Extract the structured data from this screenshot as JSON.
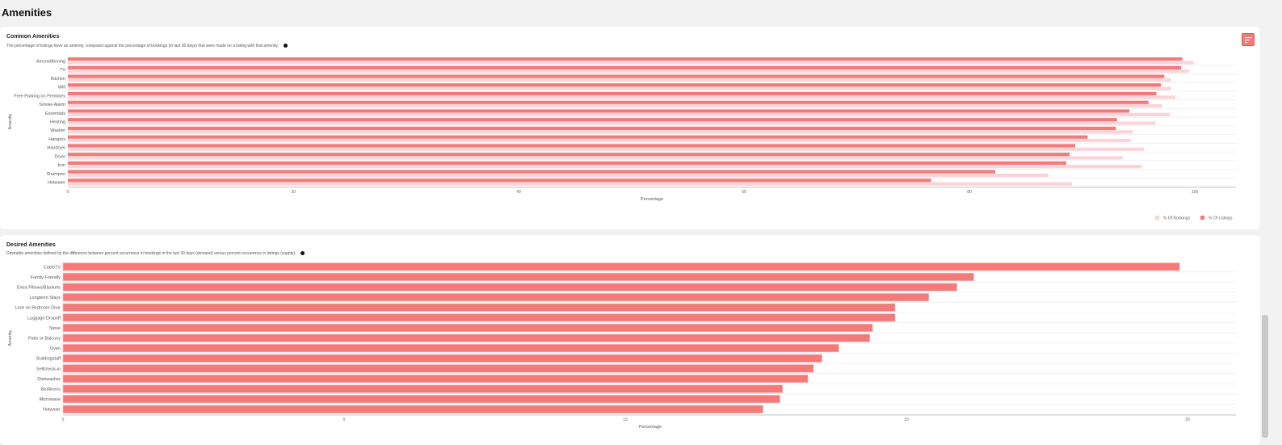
{
  "page": {
    "title": "Amenities"
  },
  "colors": {
    "listings": "#f47a7a",
    "bookings": "#fad4d8",
    "desired": "#f47a7a"
  },
  "common": {
    "title": "Common Amenities",
    "subtitle": "The percentage of listings have an amenity, compared against the percentage of bookings (in last 30 days) that were made on a listing with that amenity.",
    "info_icon": "info-icon",
    "menu_icon": "menu-lines-icon"
  },
  "desired": {
    "title": "Desired Amenities",
    "subtitle": "Desirable amenities defined by the difference between percent occurrence in bookings in the last 30 days (demand) versus percent occurrence in listings (supply).",
    "info_icon": "info-icon"
  },
  "chart_data": [
    {
      "type": "bar",
      "orientation": "horizontal",
      "xlabel": "Percentage",
      "ylabel": "Amenity",
      "xlim": [
        0,
        105
      ],
      "xticks": [
        "0",
        "20",
        "40",
        "60",
        "80",
        "100"
      ],
      "grid": true,
      "legend": "bottom-right",
      "categories": [
        "Airconditioning",
        "TV",
        "Kitchen",
        "Wifi",
        "Free Parking on Premises",
        "Smoke Alarm",
        "Essentials",
        "Heating",
        "Washer",
        "Hangers",
        "Hairdryer",
        "Dryer",
        "Iron",
        "Shampoo",
        "Hotwater"
      ],
      "series": [
        {
          "name": "% Of Listings",
          "values": [
            98.9,
            98.8,
            97.3,
            97.0,
            96.6,
            95.9,
            94.2,
            93.1,
            93.0,
            90.5,
            89.4,
            88.9,
            88.6,
            82.3,
            76.6
          ]
        },
        {
          "name": "% Of Bookings",
          "values": [
            99.9,
            99.5,
            97.9,
            97.9,
            98.3,
            97.1,
            97.8,
            96.5,
            94.5,
            94.3,
            95.5,
            93.6,
            95.3,
            87.0,
            89.1
          ]
        }
      ]
    },
    {
      "type": "bar",
      "orientation": "horizontal",
      "xlabel": "Percentage",
      "ylabel": "Amenity",
      "xlim": [
        0,
        21
      ],
      "xticks": [
        "0",
        "5",
        "10",
        "15",
        "20"
      ],
      "grid": true,
      "categories": [
        "CableTV",
        "Family Friendly",
        "Extra Pillows/Blankets",
        "Longterm Stays",
        "Lock on Bedroom Door",
        "Luggage Dropoff",
        "Stove",
        "Patio or Balcony",
        "Oven",
        "Buildingstaff",
        "Selfcheck-in",
        "Dishwasher",
        "Bedlinens",
        "Microwave",
        "Hotwater"
      ],
      "values": [
        19.86,
        16.2,
        15.9,
        15.4,
        14.8,
        14.8,
        14.4,
        14.35,
        13.8,
        13.5,
        13.35,
        13.25,
        12.8,
        12.75,
        12.45
      ]
    }
  ]
}
